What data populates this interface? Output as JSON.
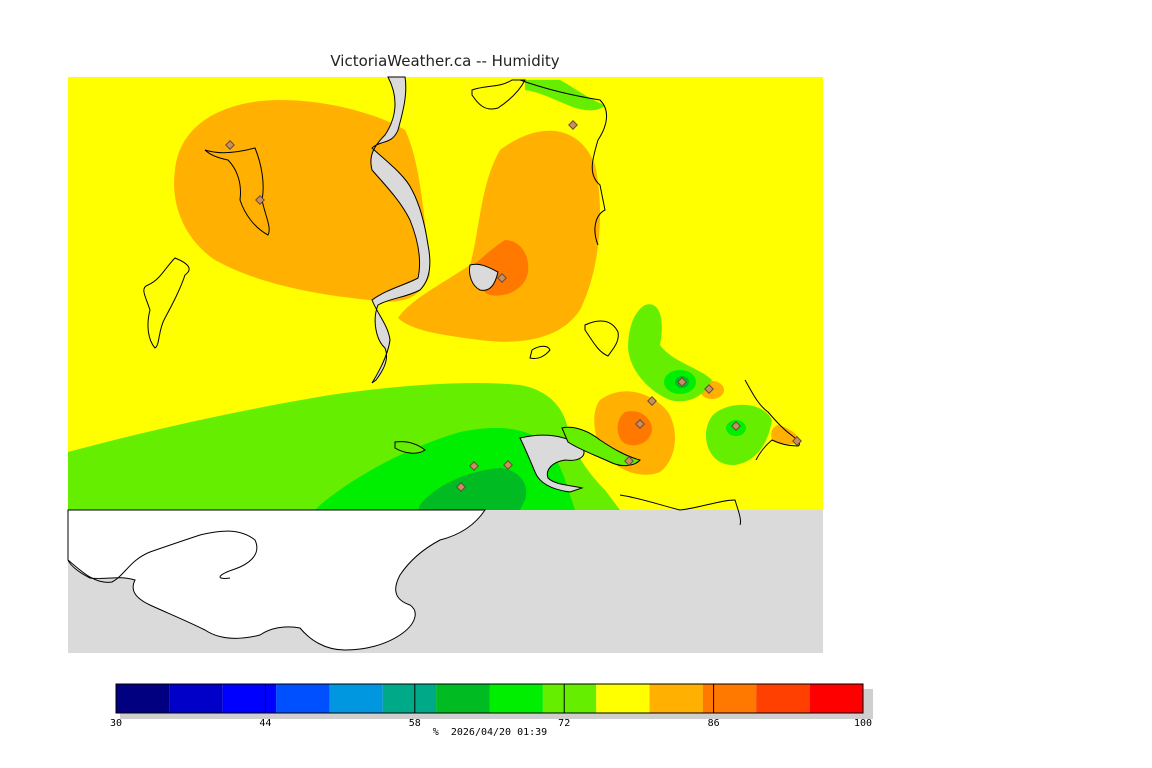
{
  "title": "VictoriaWeather.ca -- Humidity",
  "colors": {
    "water": "#dadada",
    "outside": "#ffffff",
    "coast": "#000000",
    "station": "#8b6a5a"
  },
  "map": {
    "stations_count_note": "",
    "layers": [
      {
        "name": "yellow-zone",
        "value_range": "76-80"
      },
      {
        "name": "orange-zone",
        "value_range": "80-84"
      },
      {
        "name": "dark-orange-zone",
        "value_range": "84-88"
      },
      {
        "name": "light-green-zone",
        "value_range": "72-76"
      },
      {
        "name": "green-zone",
        "value_range": "68-72"
      },
      {
        "name": "dark-green-zone",
        "value_range": "64-68"
      }
    ]
  },
  "legend": {
    "unit": "%",
    "timestamp": "2026/04/20 01:39",
    "min": 30,
    "max": 100,
    "bins": [
      {
        "from": 30,
        "to": 35,
        "color": "#000080"
      },
      {
        "from": 35,
        "to": 40,
        "color": "#0000c8"
      },
      {
        "from": 40,
        "to": 45,
        "color": "#0000ff"
      },
      {
        "from": 45,
        "to": 50,
        "color": "#0050ff"
      },
      {
        "from": 50,
        "to": 55,
        "color": "#0096e0"
      },
      {
        "from": 55,
        "to": 60,
        "color": "#00aa88"
      },
      {
        "from": 60,
        "to": 65,
        "color": "#00bb22"
      },
      {
        "from": 65,
        "to": 70,
        "color": "#00ee00"
      },
      {
        "from": 70,
        "to": 75,
        "color": "#66ee00"
      },
      {
        "from": 75,
        "to": 80,
        "color": "#ffff00"
      },
      {
        "from": 80,
        "to": 85,
        "color": "#ffb000"
      },
      {
        "from": 85,
        "to": 90,
        "color": "#ff7800"
      },
      {
        "from": 90,
        "to": 95,
        "color": "#ff4000"
      },
      {
        "from": 95,
        "to": 100,
        "color": "#ff0000"
      }
    ],
    "tick_labels": [
      {
        "value": 30,
        "label": "30"
      },
      {
        "value": 44,
        "label": "44"
      },
      {
        "value": 58,
        "label": "58"
      },
      {
        "value": 72,
        "label": "72"
      },
      {
        "value": 86,
        "label": "86"
      },
      {
        "value": 100,
        "label": "100"
      }
    ]
  }
}
